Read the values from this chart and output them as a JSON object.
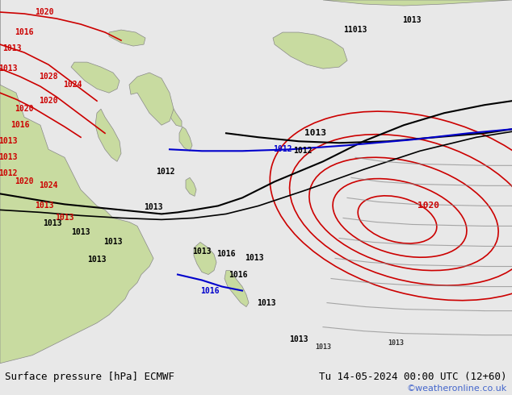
{
  "title_left": "Surface pressure [hPa] ECMWF",
  "title_right": "Tu 14-05-2024 00:00 UTC (12+60)",
  "credit": "©weatheronline.co.uk",
  "bg_color": "#e8e8e8",
  "map_bg_color": "#d0e8f0",
  "land_color": "#c8dba0",
  "figsize": [
    6.34,
    4.9
  ],
  "dpi": 100,
  "bottom_bar_color": "#f0f0f0",
  "title_fontsize": 9,
  "credit_color": "#4466cc",
  "red_color": "#cc0000",
  "black_color": "#000000",
  "blue_color": "#0000cc",
  "gray_color": "#888888"
}
